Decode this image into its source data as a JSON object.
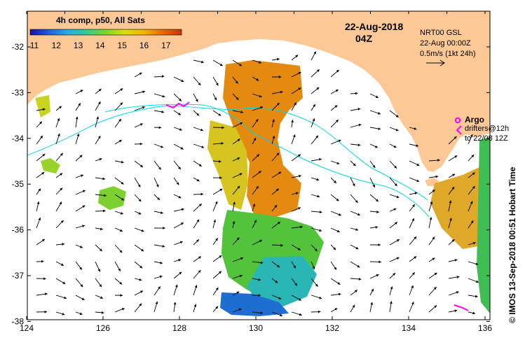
{
  "header": {
    "composite_label": "4h comp, p50, All Sats",
    "date": "22-Aug-2018",
    "time": "04Z"
  },
  "colorbar": {
    "ticks": [
      "11",
      "12",
      "13",
      "14",
      "15",
      "16",
      "17"
    ],
    "colors": [
      "#1a0dab",
      "#1f5fe0",
      "#20b0e8",
      "#2ecf8a",
      "#7fd62a",
      "#d8e010",
      "#f5b400",
      "#e86a00",
      "#c83200"
    ]
  },
  "current_info": {
    "model": "NRT00 GSL",
    "timestamp": "22-Aug 00:00Z",
    "scale": "0.5m/s (1kt 24h)"
  },
  "legend": {
    "argo_label": "Argo",
    "drifters_line1": "drifters@12h",
    "drifters_line2": "to 22/08 12Z"
  },
  "axes": {
    "x_ticks": [
      "124",
      "126",
      "128",
      "130",
      "132",
      "134",
      "136"
    ],
    "y_ticks": [
      "-32",
      "-33",
      "-34",
      "-35",
      "-36",
      "-37",
      "-38"
    ]
  },
  "credit": "© IMOS 13-Sep-2018 00:51 Hobart Time",
  "colors": {
    "land": "#fcc895",
    "vector": "#000000",
    "contour": "#00d8e8",
    "argo": "#ff00ff"
  }
}
